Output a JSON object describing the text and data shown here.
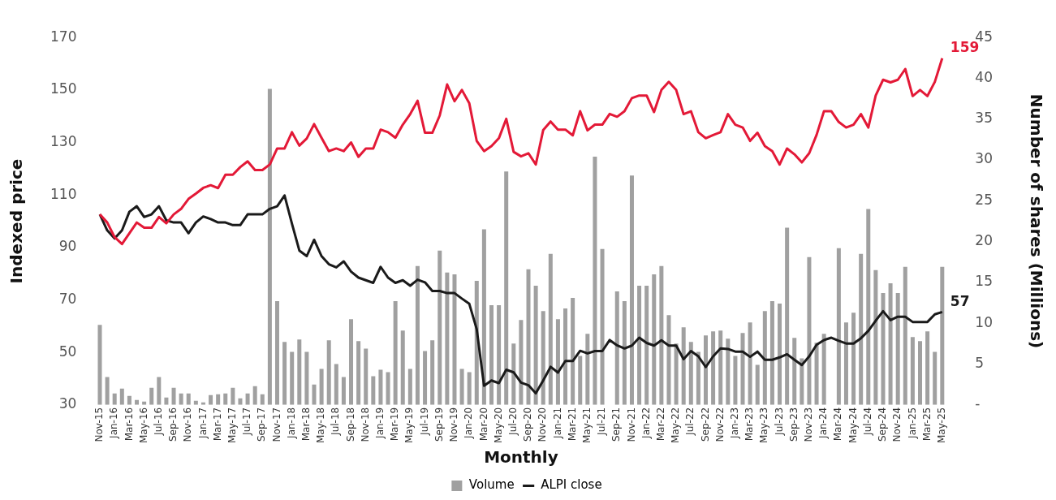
{
  "chart_data": {
    "type": "line",
    "categories": [
      "Nov-15",
      null,
      "Jan-16",
      null,
      "Mar-16",
      null,
      "May-16",
      null,
      "Jul-16",
      null,
      "Sep-16",
      null,
      "Nov-16",
      null,
      "Jan-17",
      null,
      "Mar-17",
      null,
      "May-17",
      null,
      "Jul-17",
      null,
      "Sep-17",
      null,
      "Nov-17",
      null,
      "Jan-18",
      null,
      "Mar-18",
      null,
      "May-18",
      null,
      "Jul-18",
      null,
      "Sep-18",
      null,
      "Nov-18",
      null,
      "Jan-19",
      null,
      "Mar-19",
      null,
      "May-19",
      null,
      "Jul-19",
      null,
      "Sep-19",
      null,
      "Nov-19",
      null,
      "Jan-20",
      null,
      "Mar-20",
      null,
      "May-20",
      null,
      "Jul-20",
      null,
      "Sep-20",
      null,
      "Nov-20",
      null,
      "Jan-21",
      null,
      "Mar-21",
      null,
      "May-21",
      null,
      "Jul-21",
      null,
      "Sep-21",
      null,
      "Nov-21",
      null,
      "Jan-22",
      null,
      "Mar-22",
      null,
      "May-22",
      null,
      "Jul-22",
      null,
      "Sep-22",
      null,
      "Nov-22",
      null,
      "Jan-23",
      null,
      "Mar-23",
      null,
      "May-23",
      null,
      "Jul-23",
      null,
      "Sep-23",
      null,
      "Nov-23",
      null,
      "Jan-24",
      null,
      "Mar-24",
      null,
      "May-24",
      null,
      "Jul-24",
      null,
      "Sep-24",
      null,
      "Nov-24",
      null,
      "Jan-25",
      null,
      "Mar-25",
      null,
      "May-25"
    ],
    "series": [
      {
        "name": "Volume",
        "type": "bar",
        "axis": "y2",
        "color": "#a0a0a0",
        "values": [
          9.8,
          3.4,
          1.4,
          2.0,
          1.1,
          0.6,
          0.4,
          2.1,
          3.4,
          0.9,
          2.1,
          1.4,
          1.4,
          0.5,
          0.3,
          1.2,
          1.3,
          1.4,
          2.1,
          0.8,
          1.4,
          2.3,
          1.3,
          38.7,
          12.7,
          7.7,
          6.5,
          8.0,
          6.5,
          2.5,
          4.4,
          7.9,
          5.0,
          3.4,
          10.5,
          7.8,
          6.9,
          3.5,
          4.3,
          4.0,
          12.7,
          9.1,
          4.4,
          17.0,
          6.6,
          7.9,
          18.9,
          16.2,
          16.0,
          4.4,
          4.0,
          15.2,
          21.5,
          12.2,
          12.2,
          28.6,
          7.5,
          10.4,
          16.6,
          14.6,
          11.5,
          18.5,
          10.5,
          11.8,
          13.1,
          6.0,
          8.7,
          30.4,
          19.1,
          null,
          13.9,
          12.7,
          28.1,
          14.6,
          14.6,
          16.0,
          17.0,
          11.0,
          7.5,
          9.5,
          7.7,
          6.5,
          8.5,
          9.0,
          9.1,
          8.1,
          6.0,
          8.8,
          10.1,
          4.9,
          11.5,
          12.7,
          12.4,
          21.7,
          8.2,
          5.7,
          18.1,
          7.6,
          8.7,
          null,
          19.2,
          10.1,
          11.3,
          18.5,
          24.0,
          16.5,
          13.7,
          14.9,
          13.7,
          16.9,
          8.3,
          7.8,
          9.0,
          6.5,
          16.9
        ]
      },
      {
        "color": "#e31937",
        "values": [
          102.6,
          99.5,
          93.9,
          91.3,
          95.4,
          99.5,
          97.5,
          97.5,
          101.6,
          99.2,
          102.6,
          104.7,
          108.5,
          110.5,
          112.7,
          113.7,
          112.6,
          117.7,
          117.7,
          120.6,
          122.8,
          119.5,
          119.5,
          121.6,
          127.7,
          127.7,
          133.9,
          128.8,
          131.5,
          137.0,
          131.8,
          126.7,
          127.7,
          126.7,
          130.0,
          124.5,
          127.7,
          127.7,
          134.9,
          133.9,
          131.8,
          136.8,
          140.8,
          145.9,
          133.7,
          133.7,
          140.3,
          152.1,
          145.7,
          150.0,
          144.9,
          130.6,
          126.7,
          128.6,
          131.6,
          139.0,
          126.4,
          124.7,
          125.9,
          121.6,
          134.7,
          138.0,
          134.9,
          134.9,
          132.7,
          141.9,
          134.6,
          136.8,
          136.8,
          140.9,
          139.8,
          141.9,
          146.9,
          147.9,
          147.9,
          141.6,
          150.0,
          153.1,
          150.0,
          140.8,
          141.9,
          133.9,
          131.6,
          132.8,
          133.9,
          140.8,
          136.8,
          135.7,
          130.6,
          133.7,
          128.6,
          126.7,
          121.6,
          127.7,
          125.5,
          122.4,
          125.9,
          132.9,
          141.9,
          141.9,
          137.8,
          135.7,
          136.8,
          140.8,
          135.7,
          147.9,
          153.9,
          152.9,
          153.9,
          158.0,
          147.7,
          150.0,
          147.7,
          153.1,
          162.1
        ]
      },
      {
        "name": "ALPI close",
        "color": "#1a1a1a",
        "values": [
          102.6,
          96.5,
          93.4,
          96.5,
          103.6,
          105.7,
          101.6,
          102.6,
          105.7,
          100.3,
          99.5,
          99.5,
          95.4,
          99.5,
          101.8,
          100.8,
          99.5,
          99.5,
          98.5,
          98.5,
          102.6,
          102.6,
          102.6,
          104.7,
          105.7,
          109.8,
          99.0,
          88.8,
          86.7,
          92.9,
          86.7,
          83.6,
          82.4,
          84.7,
          80.8,
          78.5,
          77.5,
          76.5,
          82.6,
          78.5,
          76.5,
          77.5,
          75.4,
          77.7,
          76.7,
          73.4,
          73.4,
          72.6,
          72.6,
          70.5,
          68.5,
          58.9,
          37.3,
          39.3,
          38.3,
          43.4,
          42.4,
          38.5,
          37.5,
          34.4,
          39.3,
          44.5,
          42.3,
          46.7,
          46.7,
          50.6,
          49.6,
          50.5,
          50.5,
          54.7,
          52.7,
          51.5,
          52.6,
          55.6,
          53.6,
          52.6,
          54.6,
          52.6,
          52.6,
          47.4,
          50.5,
          48.5,
          44.4,
          48.5,
          51.5,
          51.3,
          50.3,
          50.3,
          48.3,
          50.3,
          47.2,
          47.2,
          48.1,
          49.3,
          47.2,
          45.2,
          48.5,
          52.9,
          54.7,
          55.6,
          54.4,
          53.4,
          53.4,
          55.4,
          58.2,
          62.1,
          65.7,
          62.3,
          63.6,
          63.6,
          61.6,
          61.6,
          61.6,
          64.5,
          65.4
        ]
      }
    ],
    "xlabel": "Monthly",
    "ylabel": "Indexed price",
    "y2label": "Number of shares (Millions)",
    "ylim": [
      30,
      170
    ],
    "yticks": [
      30,
      50,
      70,
      90,
      110,
      130,
      150,
      170
    ],
    "y2lim": [
      0,
      45
    ],
    "y2ticks": [
      {
        "value": 0,
        "label": "-"
      },
      5,
      10,
      15,
      20,
      25,
      30,
      35,
      40,
      45
    ],
    "annotations": [
      {
        "text": "159",
        "x": "May-25",
        "y": 162.1
      },
      {
        "text": "57",
        "x": "May-25",
        "y": 65.4
      }
    ],
    "legend": "bottom",
    "marker": "none"
  }
}
